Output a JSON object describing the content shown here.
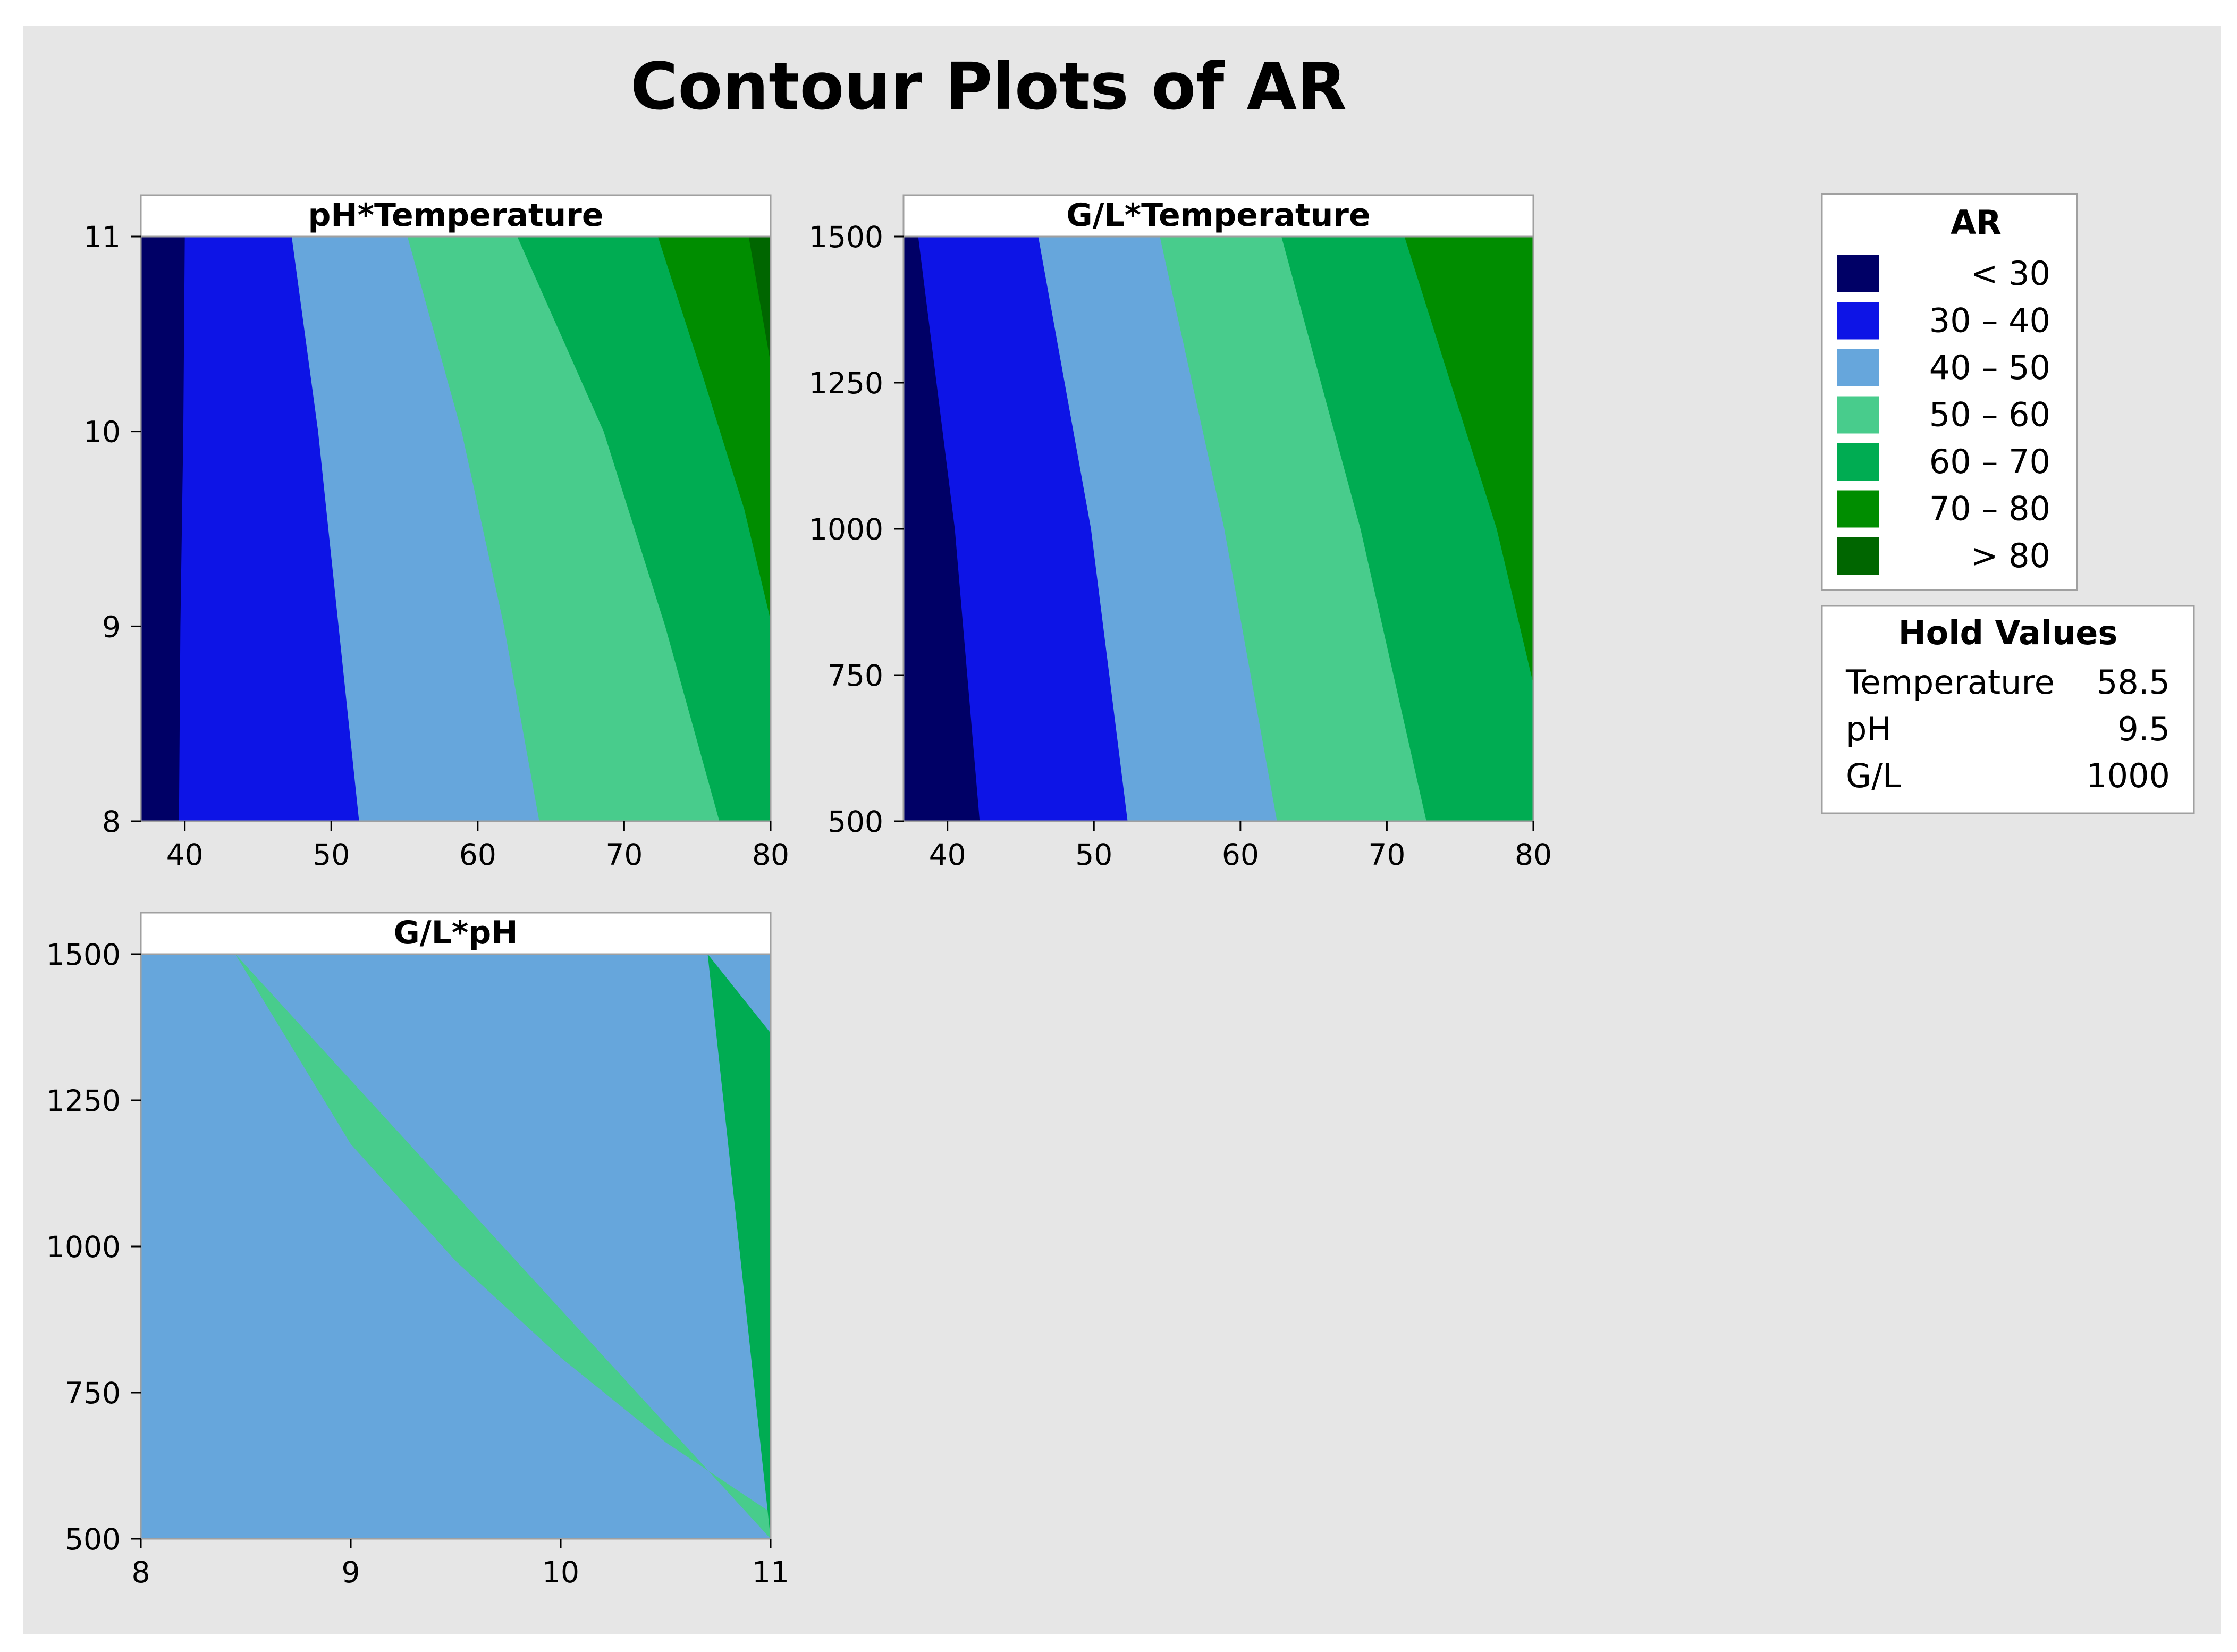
{
  "chart_data": {
    "type": "contour",
    "title": "Contour Plots of AR",
    "colors": {
      "background": "#e6e6e6",
      "level_0": "#000066",
      "level_1": "#0d14e6",
      "level_2": "#66a6dc",
      "level_3": "#48cc8c",
      "level_4": "#00ac52",
      "level_5": "#008d00",
      "level_6": "#006600"
    },
    "legend": {
      "title": "AR",
      "placement": "right",
      "levels": [
        {
          "range": "< 30",
          "low": null,
          "high": 30
        },
        {
          "range": "30 – 40",
          "low": 30,
          "high": 40
        },
        {
          "range": "40 – 50",
          "low": 40,
          "high": 50
        },
        {
          "range": "50 – 60",
          "low": 50,
          "high": 60
        },
        {
          "range": "60 – 70",
          "low": 60,
          "high": 70
        },
        {
          "range": "70 – 80",
          "low": 70,
          "high": 80
        },
        {
          "range": "> 80",
          "low": 80,
          "high": null
        }
      ]
    },
    "hold_values": {
      "title": "Hold Values",
      "rows": [
        {
          "label": "Temperature",
          "value": "58.5"
        },
        {
          "label": "pH",
          "value": "9.5"
        },
        {
          "label": "G/L",
          "value": "1000"
        }
      ]
    },
    "panels": [
      {
        "title": "pH*Temperature",
        "x_variable": "Temperature",
        "y_variable": "pH",
        "xlim": [
          37,
          80
        ],
        "ylim": [
          8,
          11
        ],
        "xticks": [
          "40",
          "50",
          "60",
          "70",
          "80"
        ],
        "yticks": [
          "8",
          "9",
          "10",
          "11"
        ],
        "contours": [
          {
            "level": 30,
            "points": [
              [
                39.6,
                8
              ],
              [
                39.7,
                9
              ],
              [
                39.9,
                10
              ],
              [
                40,
                11
              ]
            ]
          },
          {
            "level": 40,
            "points": [
              [
                51.9,
                8
              ],
              [
                50.5,
                9
              ],
              [
                49.1,
                10
              ],
              [
                47.3,
                11
              ]
            ]
          },
          {
            "level": 50,
            "points": [
              [
                64.2,
                8
              ],
              [
                61.8,
                9
              ],
              [
                58.9,
                10
              ],
              [
                55.2,
                11
              ]
            ]
          },
          {
            "level": 60,
            "points": [
              [
                76.5,
                8
              ],
              [
                72.8,
                9
              ],
              [
                68.6,
                10
              ],
              [
                62.7,
                11
              ]
            ]
          },
          {
            "level": 70,
            "points": [
              [
                80,
                9.03
              ],
              [
                78.2,
                9.6
              ],
              [
                75.3,
                10.3
              ],
              [
                72.3,
                11
              ]
            ]
          },
          {
            "level": 80,
            "points": [
              [
                80,
                10.35
              ],
              [
                79.3,
                10.65
              ],
              [
                78.5,
                11
              ]
            ]
          }
        ]
      },
      {
        "title": "G/L*Temperature",
        "x_variable": "Temperature",
        "y_variable": "G/L",
        "xlim": [
          37,
          80
        ],
        "ylim": [
          500,
          1500
        ],
        "xticks": [
          "40",
          "50",
          "60",
          "70",
          "80"
        ],
        "yticks": [
          "500",
          "750",
          "1000",
          "1250",
          "1500"
        ],
        "contours": [
          {
            "level": 30,
            "points": [
              [
                42.2,
                500
              ],
              [
                40.5,
                1000
              ],
              [
                38,
                1500
              ]
            ]
          },
          {
            "level": 40,
            "points": [
              [
                52.3,
                500
              ],
              [
                49.8,
                1000
              ],
              [
                46.2,
                1500
              ]
            ]
          },
          {
            "level": 50,
            "points": [
              [
                62.5,
                500
              ],
              [
                58.9,
                1000
              ],
              [
                54.5,
                1500
              ]
            ]
          },
          {
            "level": 60,
            "points": [
              [
                72.7,
                500
              ],
              [
                68.2,
                1000
              ],
              [
                62.8,
                1500
              ]
            ]
          },
          {
            "level": 70,
            "points": [
              [
                80,
                735
              ],
              [
                77.5,
                1000
              ],
              [
                71.2,
                1500
              ]
            ]
          }
        ]
      },
      {
        "title": "G/L*pH",
        "x_variable": "pH",
        "y_variable": "G/L",
        "xlim": [
          8,
          11
        ],
        "ylim": [
          500,
          1500
        ],
        "xticks": [
          "8",
          "9",
          "10",
          "11"
        ],
        "yticks": [
          "500",
          "750",
          "1000",
          "1250",
          "1500"
        ],
        "contours": [
          {
            "level": 50,
            "points": [
              [
                8.45,
                1500
              ],
              [
                9,
                1175
              ],
              [
                9.5,
                975
              ],
              [
                10,
                810
              ],
              [
                10.5,
                665
              ],
              [
                11,
                545
              ]
            ]
          },
          {
            "level": 60,
            "points": [
              [
                10.7,
                1500
              ],
              [
                11,
                1365
              ]
            ]
          }
        ]
      }
    ]
  }
}
